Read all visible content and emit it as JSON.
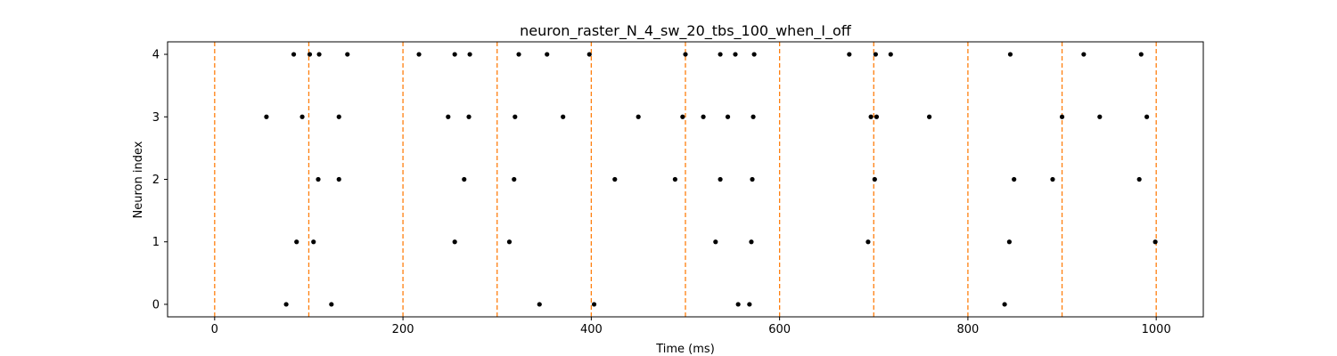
{
  "chart_data": {
    "type": "scatter",
    "title": "neuron_raster_N_4_sw_20_tbs_100_when_I_off",
    "xlabel": "Time (ms)",
    "ylabel": "Neuron index",
    "xlim": [
      -50,
      1050
    ],
    "ylim": [
      -0.2,
      4.2
    ],
    "x_ticks": [
      0,
      200,
      400,
      600,
      800,
      1000
    ],
    "y_ticks": [
      0,
      1,
      2,
      3,
      4
    ],
    "grid": false,
    "marker_color": "#000000",
    "vline_color": "#ff7f0e",
    "vlines": [
      0,
      100,
      200,
      300,
      400,
      500,
      600,
      700,
      800,
      900,
      1000
    ],
    "series": [
      {
        "neuron": 0,
        "spikes": [
          76,
          124,
          345,
          403,
          556,
          568,
          839
        ]
      },
      {
        "neuron": 1,
        "spikes": [
          87,
          105,
          255,
          313,
          532,
          570,
          694,
          844,
          999
        ]
      },
      {
        "neuron": 2,
        "spikes": [
          110,
          132,
          265,
          318,
          425,
          489,
          537,
          571,
          701,
          849,
          890,
          982
        ]
      },
      {
        "neuron": 3,
        "spikes": [
          55,
          93,
          132,
          248,
          270,
          319,
          370,
          450,
          497,
          519,
          545,
          572,
          697,
          703,
          759,
          900,
          940,
          990
        ]
      },
      {
        "neuron": 4,
        "spikes": [
          84,
          101,
          111,
          141,
          217,
          255,
          271,
          323,
          353,
          398,
          500,
          537,
          553,
          573,
          674,
          702,
          718,
          845,
          923,
          984
        ]
      }
    ]
  }
}
